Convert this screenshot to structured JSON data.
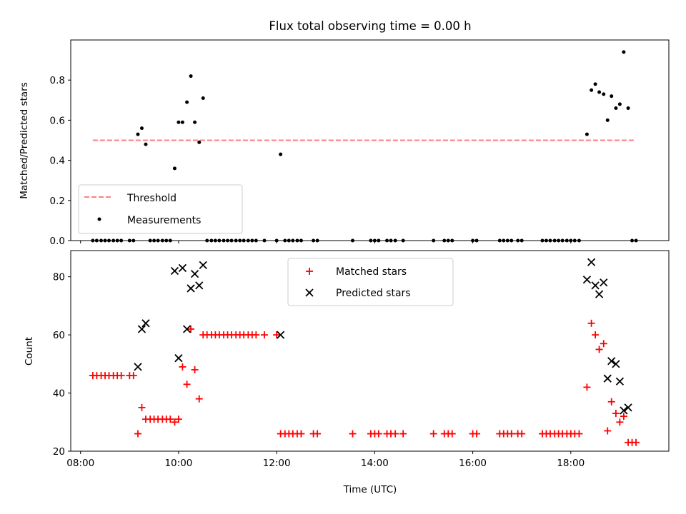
{
  "chart_data": [
    {
      "type": "scatter",
      "title": "Flux total observing time = 0.00 h",
      "xlabel": "",
      "ylabel": "Matched/Predicted stars",
      "xlim": [
        7.8,
        20.0
      ],
      "ylim": [
        0.0,
        1.0
      ],
      "xticks": [
        8,
        10,
        12,
        14,
        16,
        18
      ],
      "yticks": [
        0.0,
        0.2,
        0.4,
        0.6,
        0.8
      ],
      "ytick_labels": [
        "0.0",
        "0.2",
        "0.4",
        "0.6",
        "0.8"
      ],
      "legend_position": "lower-left",
      "threshold": {
        "name": "Threshold",
        "value": 0.5,
        "x_range": [
          8.25,
          19.3
        ],
        "color": "#ff7f7f"
      },
      "series": [
        {
          "name": "Measurements",
          "color": "#000000",
          "points": [
            [
              8.25,
              0.0
            ],
            [
              8.33,
              0.0
            ],
            [
              8.42,
              0.0
            ],
            [
              8.5,
              0.0
            ],
            [
              8.58,
              0.0
            ],
            [
              8.67,
              0.0
            ],
            [
              8.75,
              0.0
            ],
            [
              8.83,
              0.0
            ],
            [
              9.0,
              0.0
            ],
            [
              9.08,
              0.0
            ],
            [
              9.17,
              0.53
            ],
            [
              9.25,
              0.56
            ],
            [
              9.33,
              0.48
            ],
            [
              9.42,
              0.0
            ],
            [
              9.5,
              0.0
            ],
            [
              9.58,
              0.0
            ],
            [
              9.67,
              0.0
            ],
            [
              9.75,
              0.0
            ],
            [
              9.83,
              0.0
            ],
            [
              9.92,
              0.36
            ],
            [
              10.0,
              0.59
            ],
            [
              10.08,
              0.59
            ],
            [
              10.17,
              0.69
            ],
            [
              10.25,
              0.82
            ],
            [
              10.33,
              0.59
            ],
            [
              10.42,
              0.49
            ],
            [
              10.5,
              0.71
            ],
            [
              10.58,
              0.0
            ],
            [
              10.67,
              0.0
            ],
            [
              10.75,
              0.0
            ],
            [
              10.83,
              0.0
            ],
            [
              10.92,
              0.0
            ],
            [
              11.0,
              0.0
            ],
            [
              11.08,
              0.0
            ],
            [
              11.17,
              0.0
            ],
            [
              11.25,
              0.0
            ],
            [
              11.33,
              0.0
            ],
            [
              11.42,
              0.0
            ],
            [
              11.5,
              0.0
            ],
            [
              11.58,
              0.0
            ],
            [
              11.75,
              0.0
            ],
            [
              12.0,
              0.0
            ],
            [
              12.08,
              0.43
            ],
            [
              12.17,
              0.0
            ],
            [
              12.25,
              0.0
            ],
            [
              12.33,
              0.0
            ],
            [
              12.42,
              0.0
            ],
            [
              12.5,
              0.0
            ],
            [
              12.75,
              0.0
            ],
            [
              12.83,
              0.0
            ],
            [
              13.55,
              0.0
            ],
            [
              13.92,
              0.0
            ],
            [
              14.0,
              0.0
            ],
            [
              14.08,
              0.0
            ],
            [
              14.25,
              0.0
            ],
            [
              14.33,
              0.0
            ],
            [
              14.42,
              0.0
            ],
            [
              14.58,
              0.0
            ],
            [
              15.2,
              0.0
            ],
            [
              15.42,
              0.0
            ],
            [
              15.5,
              0.0
            ],
            [
              15.58,
              0.0
            ],
            [
              16.0,
              0.0
            ],
            [
              16.08,
              0.0
            ],
            [
              16.55,
              0.0
            ],
            [
              16.63,
              0.0
            ],
            [
              16.71,
              0.0
            ],
            [
              16.79,
              0.0
            ],
            [
              16.92,
              0.0
            ],
            [
              17.0,
              0.0
            ],
            [
              17.42,
              0.0
            ],
            [
              17.5,
              0.0
            ],
            [
              17.58,
              0.0
            ],
            [
              17.67,
              0.0
            ],
            [
              17.75,
              0.0
            ],
            [
              17.83,
              0.0
            ],
            [
              17.92,
              0.0
            ],
            [
              18.0,
              0.0
            ],
            [
              18.08,
              0.0
            ],
            [
              18.17,
              0.0
            ],
            [
              18.33,
              0.53
            ],
            [
              18.42,
              0.75
            ],
            [
              18.5,
              0.78
            ],
            [
              18.58,
              0.74
            ],
            [
              18.67,
              0.73
            ],
            [
              18.75,
              0.6
            ],
            [
              18.83,
              0.72
            ],
            [
              18.92,
              0.66
            ],
            [
              19.0,
              0.68
            ],
            [
              19.08,
              0.94
            ],
            [
              19.17,
              0.66
            ],
            [
              19.25,
              0.0
            ],
            [
              19.33,
              0.0
            ]
          ]
        }
      ]
    },
    {
      "type": "scatter",
      "title": "",
      "xlabel": "Time (UTC)",
      "ylabel": "Count",
      "xlim": [
        7.8,
        20.0
      ],
      "ylim": [
        20,
        89
      ],
      "xticks": [
        8,
        10,
        12,
        14,
        16,
        18
      ],
      "xtick_labels": [
        "08:00",
        "10:00",
        "12:00",
        "14:00",
        "16:00",
        "18:00"
      ],
      "yticks": [
        20,
        40,
        60,
        80
      ],
      "ytick_labels": [
        "20",
        "40",
        "60",
        "80"
      ],
      "legend_position": "upper-center",
      "series": [
        {
          "name": "Matched stars",
          "marker": "plus",
          "color": "#ff0000",
          "points": [
            [
              8.25,
              46
            ],
            [
              8.33,
              46
            ],
            [
              8.42,
              46
            ],
            [
              8.5,
              46
            ],
            [
              8.58,
              46
            ],
            [
              8.67,
              46
            ],
            [
              8.75,
              46
            ],
            [
              8.83,
              46
            ],
            [
              9.0,
              46
            ],
            [
              9.08,
              46
            ],
            [
              9.17,
              26
            ],
            [
              9.25,
              35
            ],
            [
              9.33,
              31
            ],
            [
              9.42,
              31
            ],
            [
              9.5,
              31
            ],
            [
              9.58,
              31
            ],
            [
              9.67,
              31
            ],
            [
              9.75,
              31
            ],
            [
              9.83,
              31
            ],
            [
              9.92,
              30
            ],
            [
              10.0,
              31
            ],
            [
              10.08,
              49
            ],
            [
              10.17,
              43
            ],
            [
              10.25,
              62
            ],
            [
              10.33,
              48
            ],
            [
              10.42,
              38
            ],
            [
              10.5,
              60
            ],
            [
              10.58,
              60
            ],
            [
              10.67,
              60
            ],
            [
              10.75,
              60
            ],
            [
              10.83,
              60
            ],
            [
              10.92,
              60
            ],
            [
              11.0,
              60
            ],
            [
              11.08,
              60
            ],
            [
              11.17,
              60
            ],
            [
              11.25,
              60
            ],
            [
              11.33,
              60
            ],
            [
              11.42,
              60
            ],
            [
              11.5,
              60
            ],
            [
              11.58,
              60
            ],
            [
              11.75,
              60
            ],
            [
              12.0,
              60
            ],
            [
              12.08,
              26
            ],
            [
              12.17,
              26
            ],
            [
              12.25,
              26
            ],
            [
              12.33,
              26
            ],
            [
              12.42,
              26
            ],
            [
              12.5,
              26
            ],
            [
              12.75,
              26
            ],
            [
              12.83,
              26
            ],
            [
              13.55,
              26
            ],
            [
              13.92,
              26
            ],
            [
              14.0,
              26
            ],
            [
              14.08,
              26
            ],
            [
              14.25,
              26
            ],
            [
              14.33,
              26
            ],
            [
              14.42,
              26
            ],
            [
              14.58,
              26
            ],
            [
              15.2,
              26
            ],
            [
              15.42,
              26
            ],
            [
              15.5,
              26
            ],
            [
              15.58,
              26
            ],
            [
              16.0,
              26
            ],
            [
              16.08,
              26
            ],
            [
              16.55,
              26
            ],
            [
              16.63,
              26
            ],
            [
              16.71,
              26
            ],
            [
              16.79,
              26
            ],
            [
              16.92,
              26
            ],
            [
              17.0,
              26
            ],
            [
              17.42,
              26
            ],
            [
              17.5,
              26
            ],
            [
              17.58,
              26
            ],
            [
              17.67,
              26
            ],
            [
              17.75,
              26
            ],
            [
              17.83,
              26
            ],
            [
              17.92,
              26
            ],
            [
              18.0,
              26
            ],
            [
              18.08,
              26
            ],
            [
              18.17,
              26
            ],
            [
              18.33,
              42
            ],
            [
              18.42,
              64
            ],
            [
              18.5,
              60
            ],
            [
              18.58,
              55
            ],
            [
              18.67,
              57
            ],
            [
              18.75,
              27
            ],
            [
              18.83,
              37
            ],
            [
              18.92,
              33
            ],
            [
              19.0,
              30
            ],
            [
              19.08,
              32
            ],
            [
              19.17,
              23
            ],
            [
              19.25,
              23
            ],
            [
              19.33,
              23
            ]
          ]
        },
        {
          "name": "Predicted stars",
          "marker": "x",
          "color": "#000000",
          "points": [
            [
              9.17,
              49
            ],
            [
              9.25,
              62
            ],
            [
              9.33,
              64
            ],
            [
              9.92,
              82
            ],
            [
              10.0,
              52
            ],
            [
              10.08,
              83
            ],
            [
              10.17,
              62
            ],
            [
              10.25,
              76
            ],
            [
              10.33,
              81
            ],
            [
              10.42,
              77
            ],
            [
              10.5,
              84
            ],
            [
              12.08,
              60
            ],
            [
              18.33,
              79
            ],
            [
              18.42,
              85
            ],
            [
              18.5,
              77
            ],
            [
              18.58,
              74
            ],
            [
              18.67,
              78
            ],
            [
              18.75,
              45
            ],
            [
              18.83,
              51
            ],
            [
              18.92,
              50
            ],
            [
              19.0,
              44
            ],
            [
              19.08,
              34
            ],
            [
              19.17,
              35
            ]
          ]
        }
      ]
    }
  ]
}
